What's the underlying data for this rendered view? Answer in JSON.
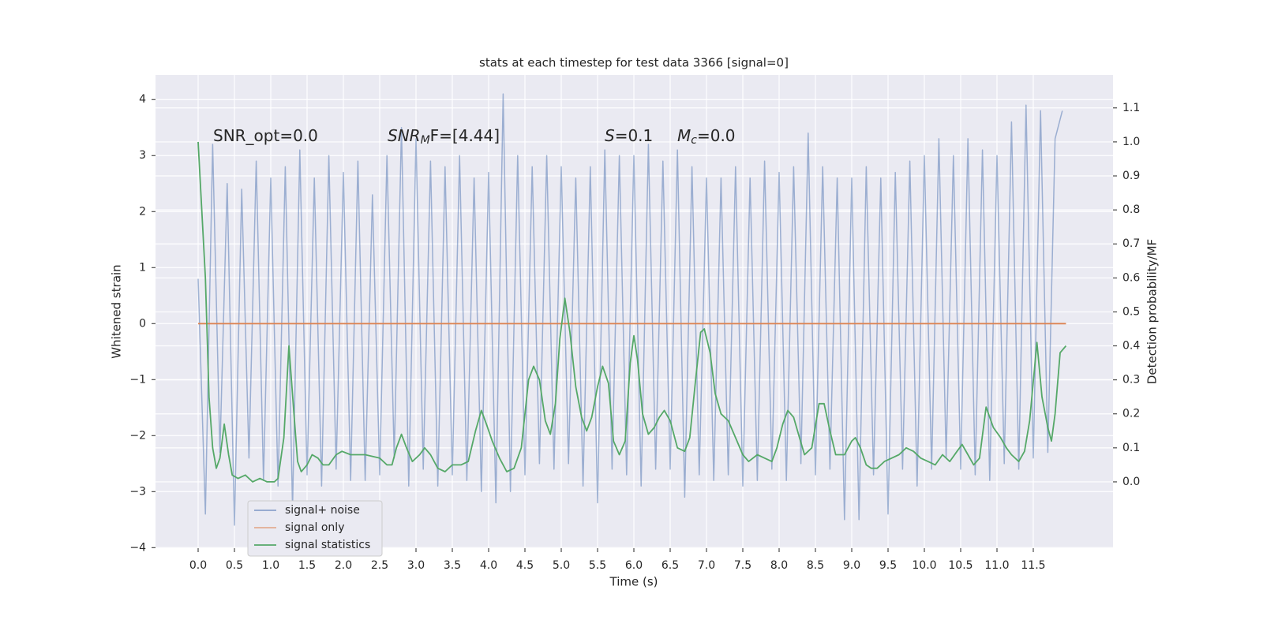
{
  "chart_data": {
    "type": "line",
    "title": "stats at each timestep for test data 3366 [signal=0]",
    "xlabel": "Time (s)",
    "ylabel": "Whitened strain",
    "y2label": "Detection probability/MF",
    "xlim": [
      -0.587,
      12.598
    ],
    "ylim": [
      -4.01,
      4.44
    ],
    "y2lim": [
      -0.195,
      1.197
    ],
    "xticks": [
      {
        "value": 0,
        "label": "0.0"
      },
      0.5,
      {
        "value": 1,
        "label": "1.0"
      },
      1.5,
      {
        "value": 2,
        "label": "2.0"
      },
      2.5,
      {
        "value": 3,
        "label": "3.0"
      },
      3.5,
      {
        "value": 4,
        "label": "4.0"
      },
      4.5,
      {
        "value": 5,
        "label": "5.0"
      },
      5.5,
      {
        "value": 6,
        "label": "6.0"
      },
      6.5,
      {
        "value": 7,
        "label": "7.0"
      },
      7.5,
      {
        "value": 8,
        "label": "8.0"
      },
      8.5,
      {
        "value": 9,
        "label": "9.0"
      },
      9.5,
      {
        "value": 10,
        "label": "10.0"
      },
      10.5,
      {
        "value": 11,
        "label": "11.0"
      },
      11.5
    ],
    "yticks": [
      {
        "value": -4,
        "label": "−4"
      },
      {
        "value": -3,
        "label": "−3"
      },
      {
        "value": -2,
        "label": "−2"
      },
      {
        "value": -1,
        "label": "−1"
      },
      0,
      1,
      2,
      3,
      4
    ],
    "y2ticks": [
      {
        "value": 0,
        "label": "0.0"
      },
      0.1,
      0.2,
      0.3,
      0.4,
      0.5,
      0.6,
      0.7,
      0.8,
      0.9,
      {
        "value": 1,
        "label": "1.0"
      },
      1.1
    ],
    "grid": true,
    "legend": "lower left",
    "annotations": [
      {
        "base": "SNR_opt=0.0"
      },
      {
        "base": "SNR",
        "sub": "M",
        "rest": "F=[4.44]"
      },
      {
        "base": "S",
        "rest": "=0.1"
      },
      {
        "base": "M",
        "sub": "c",
        "rest": "=0.0"
      }
    ],
    "series": [
      {
        "name": "signal+ noise",
        "color": "#4c72b0",
        "x": [
          0.0,
          0.1,
          0.2,
          0.3,
          0.4,
          0.5,
          0.6,
          0.7,
          0.8,
          0.9,
          1.0,
          1.1,
          1.2,
          1.3,
          1.4,
          1.5,
          1.6,
          1.7,
          1.8,
          1.9,
          2.0,
          2.1,
          2.2,
          2.3,
          2.4,
          2.5,
          2.6,
          2.7,
          2.8,
          2.9,
          3.0,
          3.1,
          3.2,
          3.3,
          3.4,
          3.5,
          3.6,
          3.7,
          3.8,
          3.9,
          4.0,
          4.1,
          4.2,
          4.3,
          4.4,
          4.5,
          4.6,
          4.7,
          4.8,
          4.9,
          5.0,
          5.1,
          5.2,
          5.3,
          5.4,
          5.5,
          5.6,
          5.7,
          5.8,
          5.9,
          6.0,
          6.1,
          6.2,
          6.3,
          6.4,
          6.5,
          6.6,
          6.7,
          6.8,
          6.9,
          7.0,
          7.1,
          7.2,
          7.3,
          7.4,
          7.5,
          7.6,
          7.7,
          7.8,
          7.9,
          8.0,
          8.1,
          8.2,
          8.3,
          8.4,
          8.5,
          8.6,
          8.7,
          8.8,
          8.9,
          9.0,
          9.1,
          9.2,
          9.3,
          9.4,
          9.5,
          9.6,
          9.7,
          9.8,
          9.9,
          10.0,
          10.1,
          10.2,
          10.3,
          10.4,
          10.5,
          10.6,
          10.7,
          10.8,
          10.9,
          11.0,
          11.1,
          11.2,
          11.3,
          11.4,
          11.5,
          11.6,
          11.7,
          11.8,
          11.9
        ],
        "values": [
          0.8,
          -3.4,
          3.2,
          -2.3,
          2.5,
          -3.6,
          2.4,
          -2.4,
          2.9,
          -2.8,
          2.6,
          -2.9,
          2.8,
          -3.3,
          3.1,
          -2.7,
          2.6,
          -2.9,
          3.0,
          -2.6,
          2.7,
          -2.8,
          2.9,
          -2.8,
          2.3,
          -2.7,
          3.0,
          -2.4,
          3.5,
          -2.9,
          3.3,
          -2.6,
          2.9,
          -2.9,
          2.8,
          -2.7,
          3.0,
          -2.8,
          2.6,
          -3.0,
          2.7,
          -3.2,
          4.1,
          -3.0,
          3.0,
          -2.7,
          2.8,
          -2.5,
          3.0,
          -2.6,
          2.8,
          -2.5,
          2.6,
          -2.9,
          2.8,
          -3.2,
          3.1,
          -2.6,
          3.0,
          -2.7,
          3.0,
          -2.9,
          3.2,
          -2.6,
          2.9,
          -2.6,
          3.1,
          -3.1,
          2.8,
          -2.7,
          2.6,
          -2.8,
          2.6,
          -2.7,
          2.8,
          -2.9,
          2.6,
          -2.8,
          2.9,
          -2.6,
          2.7,
          -2.8,
          2.8,
          -2.5,
          3.4,
          -2.7,
          2.8,
          -2.6,
          2.6,
          -3.5,
          2.6,
          -3.5,
          2.8,
          -2.7,
          2.6,
          -3.4,
          2.7,
          -2.6,
          2.9,
          -2.9,
          3.0,
          -2.6,
          3.3,
          -2.4,
          3.0,
          -2.6,
          3.3,
          -2.7,
          3.1,
          -2.8,
          3.0,
          -2.5,
          3.6,
          -2.6,
          3.9,
          -2.4,
          3.8,
          -2.3,
          3.3,
          3.8
        ]
      },
      {
        "name": "signal only",
        "color": "#dd8452",
        "x": [
          0.0,
          11.95
        ],
        "values": [
          0,
          0
        ]
      },
      {
        "name": "signal statistics",
        "color": "#55a868",
        "axis": "y2",
        "x": [
          0,
          0.1,
          0.15,
          0.2,
          0.25,
          0.3,
          0.36,
          0.42,
          0.47,
          0.55,
          0.65,
          0.75,
          0.85,
          0.95,
          1.05,
          1.1,
          1.18,
          1.25,
          1.32,
          1.37,
          1.42,
          1.5,
          1.57,
          1.65,
          1.72,
          1.8,
          1.9,
          1.98,
          2.1,
          2.3,
          2.5,
          2.6,
          2.67,
          2.73,
          2.8,
          2.87,
          2.95,
          3.05,
          3.12,
          3.2,
          3.3,
          3.4,
          3.5,
          3.62,
          3.72,
          3.82,
          3.9,
          3.97,
          4.05,
          4.15,
          4.25,
          4.35,
          4.45,
          4.55,
          4.62,
          4.7,
          4.78,
          4.85,
          4.92,
          4.98,
          5.05,
          5.12,
          5.2,
          5.28,
          5.35,
          5.42,
          5.5,
          5.57,
          5.65,
          5.72,
          5.8,
          5.88,
          5.95,
          6.0,
          6.05,
          6.12,
          6.2,
          6.28,
          6.35,
          6.42,
          6.5,
          6.6,
          6.7,
          6.77,
          6.85,
          6.92,
          6.97,
          7.05,
          7.12,
          7.2,
          7.3,
          7.4,
          7.5,
          7.58,
          7.7,
          7.8,
          7.9,
          7.97,
          8.05,
          8.12,
          8.2,
          8.28,
          8.35,
          8.45,
          8.55,
          8.62,
          8.7,
          8.78,
          8.9,
          9.0,
          9.05,
          9.12,
          9.2,
          9.27,
          9.35,
          9.45,
          9.55,
          9.65,
          9.75,
          9.85,
          9.95,
          10.05,
          10.15,
          10.25,
          10.35,
          10.45,
          10.52,
          10.6,
          10.68,
          10.76,
          10.85,
          10.95,
          11.05,
          11.13,
          11.2,
          11.3,
          11.38,
          11.45,
          11.55,
          11.62,
          11.7,
          11.75,
          11.8,
          11.87,
          11.95
        ],
        "values": [
          1.0,
          0.6,
          0.25,
          0.1,
          0.04,
          0.07,
          0.17,
          0.08,
          0.02,
          0.01,
          0.02,
          0.0,
          0.01,
          0.0,
          0.0,
          0.01,
          0.13,
          0.4,
          0.2,
          0.06,
          0.03,
          0.05,
          0.08,
          0.07,
          0.05,
          0.05,
          0.08,
          0.09,
          0.08,
          0.08,
          0.07,
          0.05,
          0.05,
          0.1,
          0.14,
          0.1,
          0.06,
          0.08,
          0.1,
          0.08,
          0.04,
          0.03,
          0.05,
          0.05,
          0.06,
          0.15,
          0.21,
          0.17,
          0.12,
          0.07,
          0.03,
          0.04,
          0.1,
          0.3,
          0.34,
          0.3,
          0.18,
          0.14,
          0.23,
          0.42,
          0.54,
          0.44,
          0.28,
          0.19,
          0.15,
          0.19,
          0.28,
          0.34,
          0.29,
          0.12,
          0.08,
          0.12,
          0.35,
          0.43,
          0.36,
          0.2,
          0.14,
          0.16,
          0.19,
          0.21,
          0.18,
          0.1,
          0.09,
          0.13,
          0.3,
          0.44,
          0.45,
          0.38,
          0.26,
          0.2,
          0.18,
          0.13,
          0.08,
          0.06,
          0.08,
          0.07,
          0.06,
          0.1,
          0.17,
          0.21,
          0.19,
          0.13,
          0.08,
          0.1,
          0.23,
          0.23,
          0.15,
          0.08,
          0.08,
          0.12,
          0.13,
          0.1,
          0.05,
          0.04,
          0.04,
          0.06,
          0.07,
          0.08,
          0.1,
          0.09,
          0.07,
          0.06,
          0.05,
          0.08,
          0.06,
          0.09,
          0.11,
          0.08,
          0.05,
          0.07,
          0.22,
          0.16,
          0.13,
          0.1,
          0.08,
          0.06,
          0.09,
          0.18,
          0.41,
          0.25,
          0.16,
          0.12,
          0.2,
          0.38,
          0.4
        ]
      }
    ]
  }
}
